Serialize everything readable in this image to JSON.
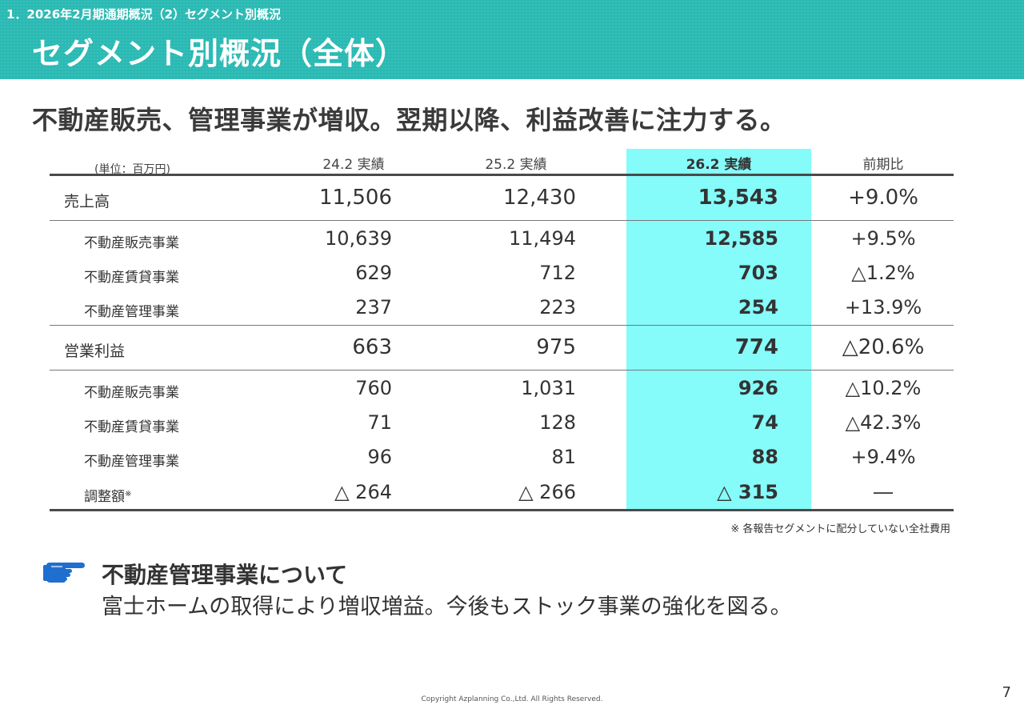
{
  "header": {
    "breadcrumb": "1．2026年2月期通期概況（2）セグメント別概況",
    "title": "セグメント別概況（全体）"
  },
  "headline": "不動産販売、管理事業が増収。翌期以降、利益改善に注力する。",
  "colors": {
    "header_bg": "#2ab9b3",
    "highlight_column": "#85fbfa",
    "hand_icon": "#1f6fd0"
  },
  "table": {
    "unit": "(単位：百万円)",
    "columns": [
      "24.2 実績",
      "25.2 実績",
      "26.2 実績",
      "前期比"
    ],
    "rows": [
      {
        "label": "売上高",
        "v1": "11,506",
        "v2": "12,430",
        "v3": "13,543",
        "change": "+9.0%"
      },
      {
        "label": "不動産販売事業",
        "v1": "10,639",
        "v2": "11,494",
        "v3": "12,585",
        "change": "+9.5%"
      },
      {
        "label": "不動産賃貸事業",
        "v1": "629",
        "v2": "712",
        "v3": "703",
        "change": "△1.2%"
      },
      {
        "label": "不動産管理事業",
        "v1": "237",
        "v2": "223",
        "v3": "254",
        "change": "+13.9%"
      },
      {
        "label": "営業利益",
        "v1": "663",
        "v2": "975",
        "v3": "774",
        "change": "△20.6%"
      },
      {
        "label": "不動産販売事業",
        "v1": "760",
        "v2": "1,031",
        "v3": "926",
        "change": "△10.2%"
      },
      {
        "label": "不動産賃貸事業",
        "v1": "71",
        "v2": "128",
        "v3": "74",
        "change": "△42.3%"
      },
      {
        "label": "不動産管理事業",
        "v1": "96",
        "v2": "81",
        "v3": "88",
        "change": "+9.4%"
      },
      {
        "label": "調整額",
        "label_mark": "※",
        "v1": "△ 264",
        "v2": "△ 266",
        "v3": "△ 315",
        "change": "―"
      }
    ]
  },
  "note": "※ 各報告セグメントに配分していない全社費用",
  "section": {
    "icon": "pointing-hand-icon",
    "title": "不動産管理事業について",
    "body": "富士ホームの取得により増収増益。今後もストック事業の強化を図る。"
  },
  "footer": {
    "copyright": "Copyright Azplanning Co.,Ltd. All Rights Reserved.",
    "page_number": "7"
  }
}
